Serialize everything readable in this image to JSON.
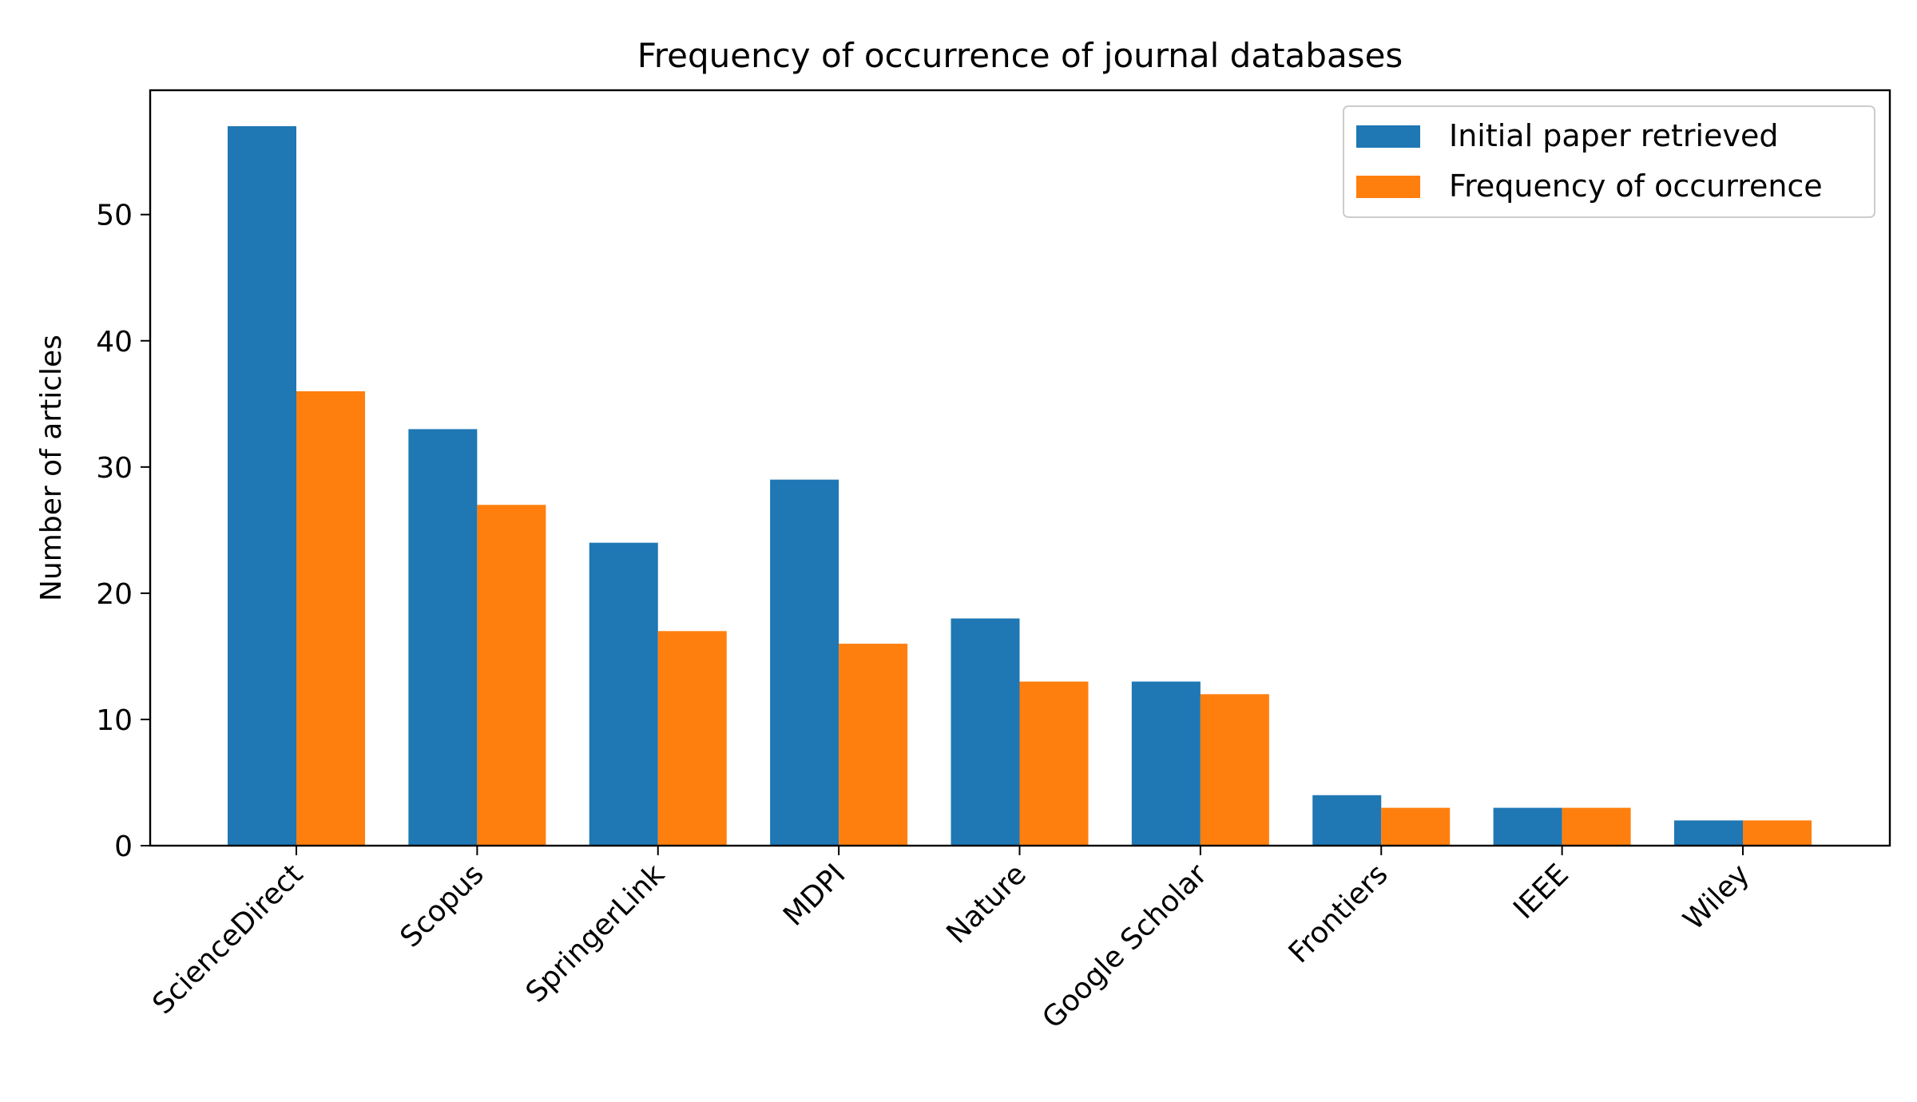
{
  "chart_data": {
    "type": "bar",
    "title": "Frequency of occurrence of journal databases",
    "xlabel": "",
    "ylabel": "Number of articles",
    "categories": [
      "ScienceDirect",
      "Scopus",
      "SpringerLink",
      "MDPI",
      "Nature",
      "Google Scholar",
      "Frontiers",
      "IEEE",
      "Wiley"
    ],
    "series": [
      {
        "name": "Initial paper retrieved",
        "color": "#1f77b4",
        "values": [
          57,
          33,
          24,
          29,
          18,
          13,
          4,
          3,
          2
        ]
      },
      {
        "name": "Frequency of occurrence",
        "color": "#ff7f0e",
        "values": [
          36,
          27,
          17,
          16,
          13,
          12,
          3,
          3,
          2
        ]
      }
    ],
    "ylim": [
      0,
      59.85
    ],
    "yticks": [
      0,
      10,
      20,
      30,
      40,
      50
    ],
    "legend": "upper right",
    "grid": false
  }
}
